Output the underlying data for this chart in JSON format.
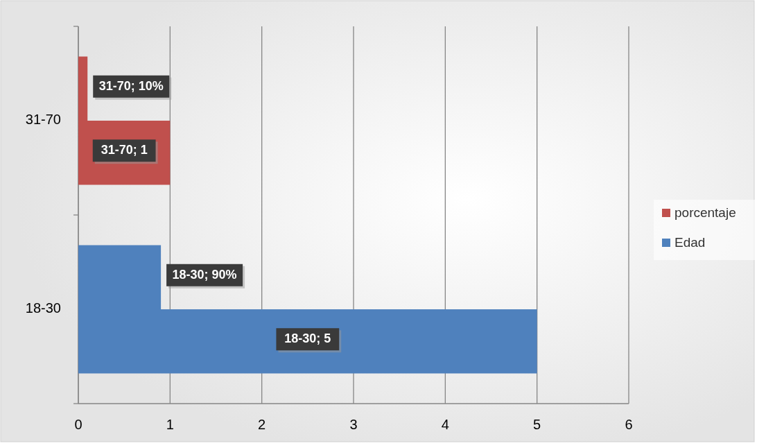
{
  "chart_data": {
    "type": "bar",
    "orientation": "horizontal",
    "categories": [
      "31-70",
      "18-30"
    ],
    "series": [
      {
        "name": "Edad",
        "color": "#4f81bd",
        "colors": [
          "#c0504d",
          "#4f81bd"
        ],
        "values": [
          1,
          5
        ],
        "value_labels": [
          "31-70; 1",
          "18-30; 5"
        ]
      },
      {
        "name": "porcentaje",
        "color": "#c0504d",
        "colors": [
          "#c0504d",
          "#4f81bd"
        ],
        "values": [
          0.1,
          0.9
        ],
        "value_labels": [
          "31-70; 10%",
          "18-30; 90%"
        ]
      }
    ],
    "xlim": [
      0,
      6
    ],
    "xticks": [
      0,
      1,
      2,
      3,
      4,
      5,
      6
    ],
    "grid": "x",
    "legend": "right"
  }
}
